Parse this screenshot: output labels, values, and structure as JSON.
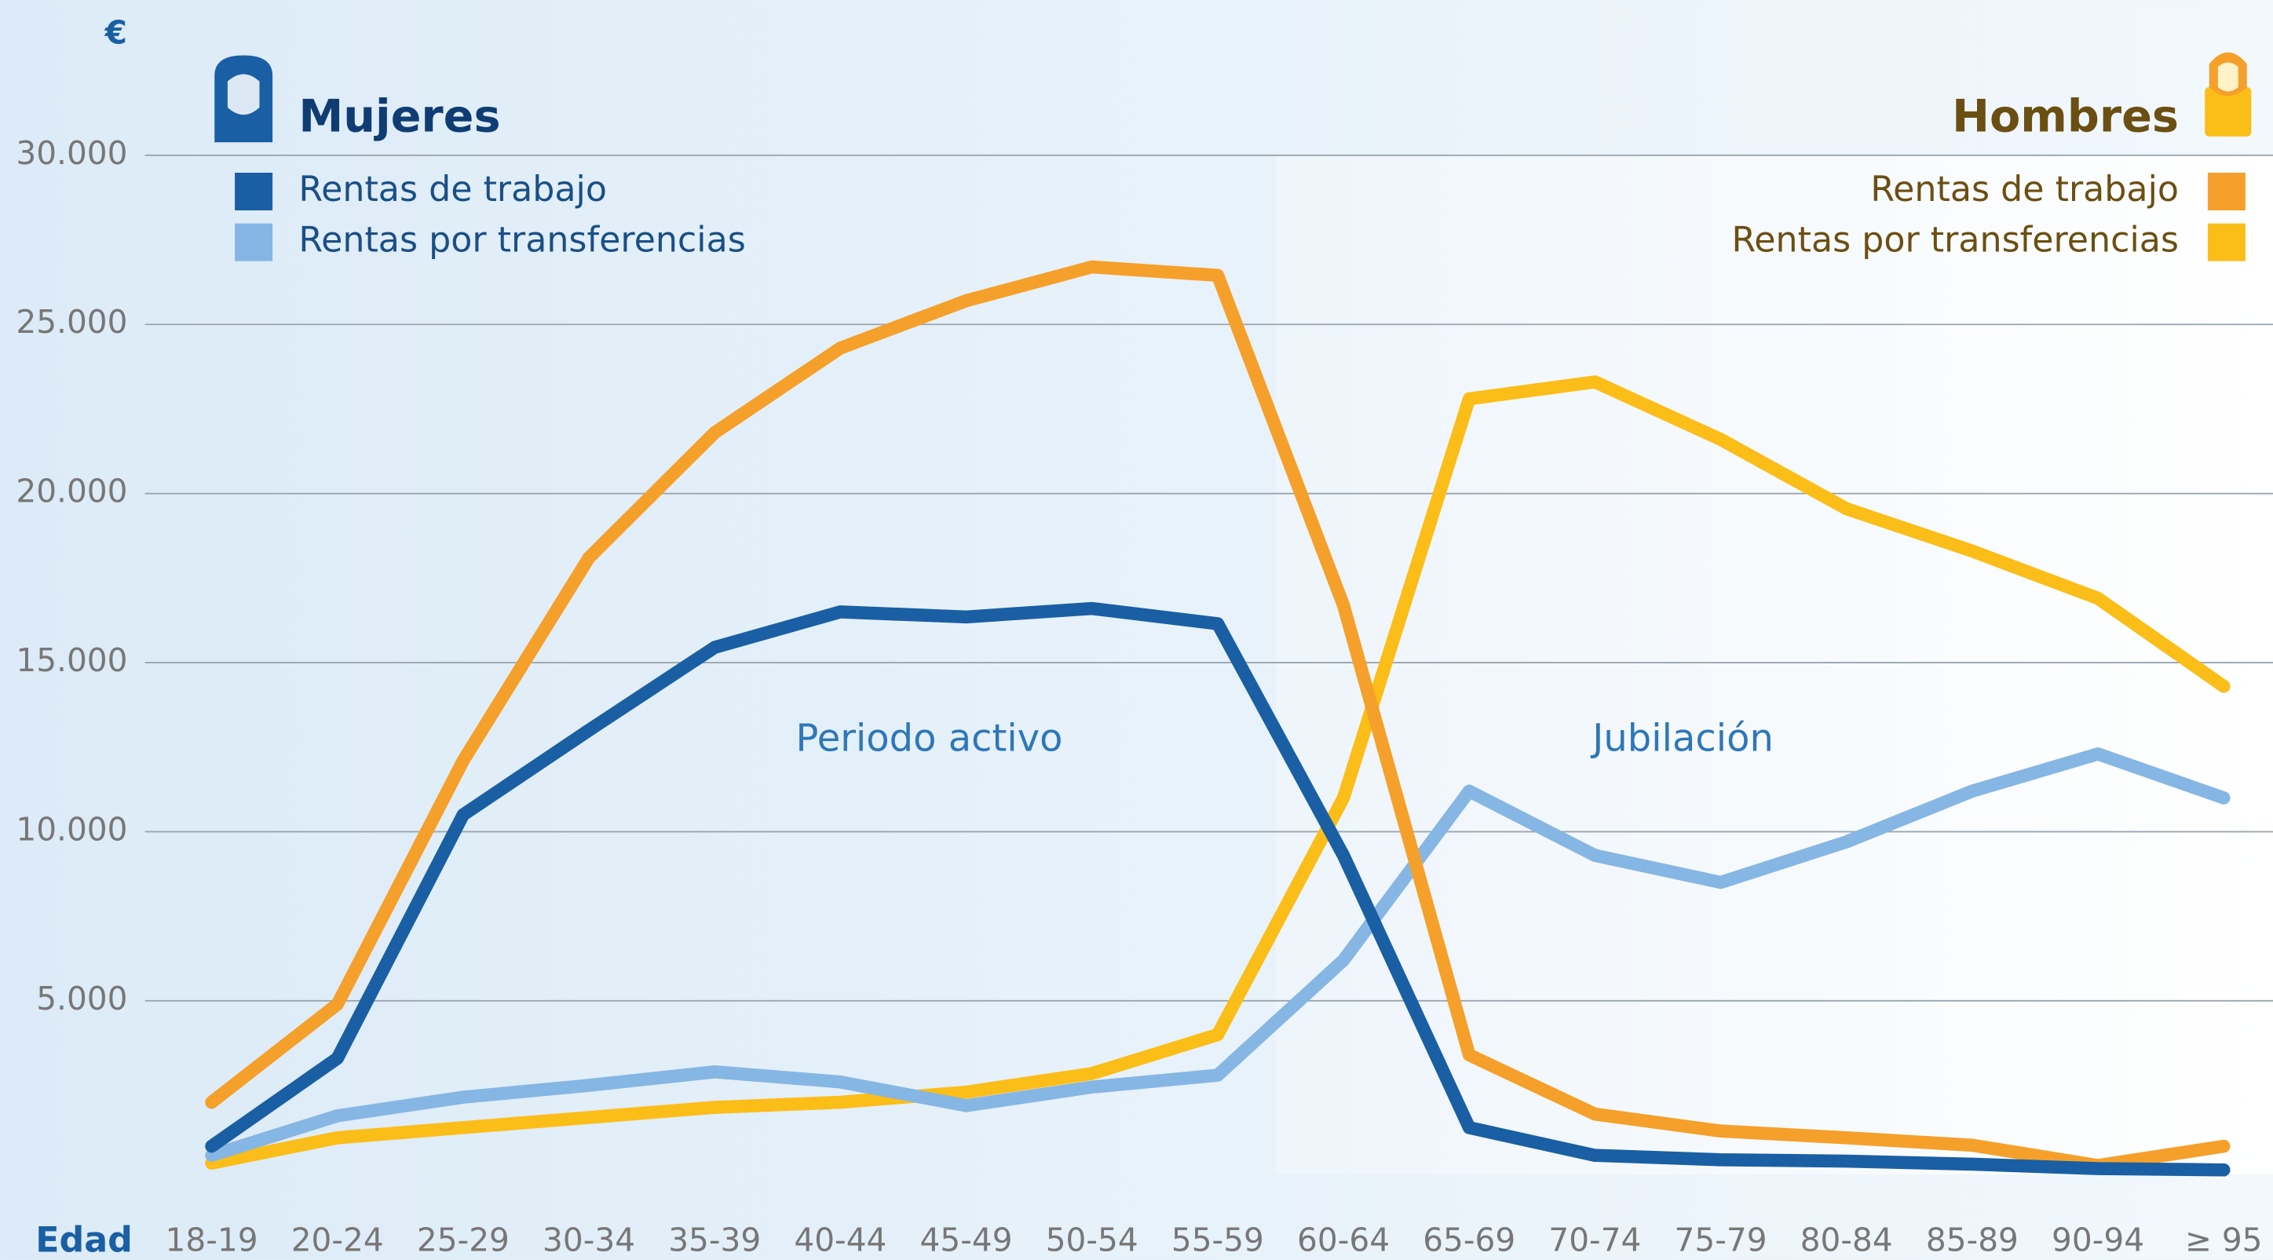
{
  "chart_data": {
    "type": "line",
    "y_unit": "€",
    "x_label": "Edad",
    "categories": [
      "18-19",
      "20-24",
      "25-29",
      "30-34",
      "35-39",
      "40-44",
      "45-49",
      "50-54",
      "55-59",
      "60-64",
      "65-69",
      "70-74",
      "75-79",
      "80-84",
      "85-89",
      "90-94",
      "≥ 95"
    ],
    "ylim": [
      0,
      30000
    ],
    "yticks": [
      {
        "value": 5000,
        "label": "5.000"
      },
      {
        "value": 10000,
        "label": "10.000"
      },
      {
        "value": 15000,
        "label": "15.000"
      },
      {
        "value": 20000,
        "label": "20.000"
      },
      {
        "value": 25000,
        "label": "25.000"
      },
      {
        "value": 30000,
        "label": "30.000"
      }
    ],
    "grid": true,
    "groups": [
      {
        "title": "Mujeres",
        "title_color": "#0f3d73",
        "series": [
          {
            "name": "Rentas de trabajo",
            "color": "#1a5fa3",
            "values": [
              700,
              3300,
              10500,
              13000,
              15450,
              16500,
              16350,
              16600,
              16150,
              9300,
              1250,
              430,
              300,
              260,
              170,
              40,
              0
            ]
          },
          {
            "name": "Rentas por transferencias",
            "color": "#86b6e3",
            "values": [
              430,
              1600,
              2150,
              2500,
              2900,
              2600,
              1900,
              2450,
              2800,
              6200,
              11200,
              9300,
              8500,
              9700,
              11200,
              12300,
              11000
            ]
          }
        ]
      },
      {
        "title": "Hombres",
        "title_color": "#6b4f12",
        "series": [
          {
            "name": "Rentas de trabajo",
            "color": "#f5a02a",
            "values": [
              2000,
              4900,
              12100,
              18100,
              21800,
              24300,
              25700,
              26700,
              26450,
              16700,
              3400,
              1650,
              1150,
              950,
              730,
              130,
              700
            ]
          },
          {
            "name": "Rentas por transferencias",
            "color": "#fbbd18",
            "values": [
              200,
              950,
              1250,
              1550,
              1850,
              2000,
              2300,
              2850,
              4000,
              11000,
              22800,
              23300,
              21600,
              19550,
              18300,
              16900,
              14300
            ]
          }
        ]
      }
    ],
    "annotations": [
      {
        "text": "Periodo activo"
      },
      {
        "text": "Jubilación"
      }
    ]
  }
}
